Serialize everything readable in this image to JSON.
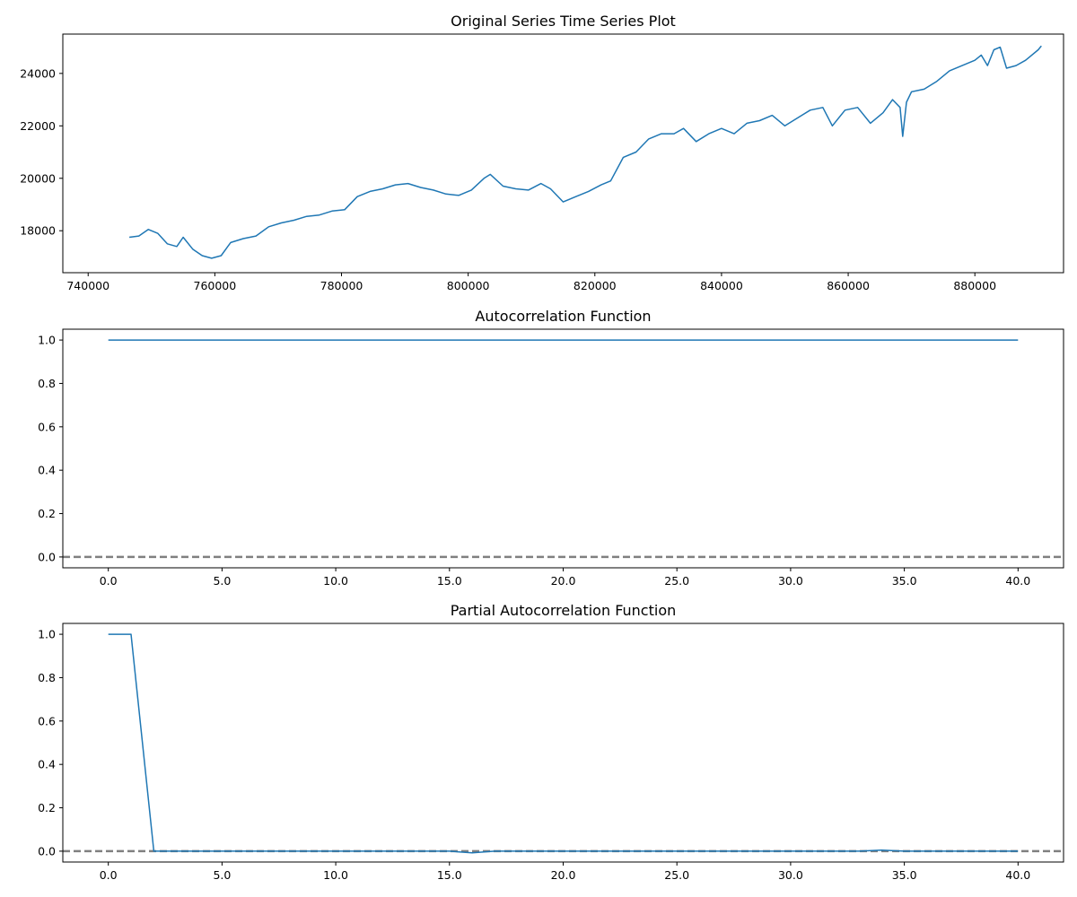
{
  "chart_data": [
    {
      "type": "line",
      "title": "Original Series Time Series Plot",
      "xlabel": "",
      "ylabel": "",
      "xlim": [
        736000,
        894000
      ],
      "ylim": [
        16400,
        25500
      ],
      "xticks": [
        740000,
        760000,
        780000,
        800000,
        820000,
        840000,
        860000,
        880000
      ],
      "yticks": [
        18000,
        20000,
        22000,
        24000
      ],
      "grid": false,
      "series": [
        {
          "color": "#1f77b4",
          "x": [
            746500,
            748000,
            749500,
            751000,
            752500,
            754000,
            755000,
            756500,
            758000,
            759500,
            761000,
            762500,
            764500,
            766500,
            768500,
            770500,
            772500,
            774500,
            776500,
            778500,
            780500,
            782500,
            784500,
            786500,
            788500,
            790500,
            792500,
            794500,
            796500,
            798500,
            800500,
            802500,
            803500,
            805500,
            807500,
            809500,
            811500,
            813000,
            815000,
            817000,
            819000,
            821000,
            822500,
            824500,
            826500,
            828500,
            830500,
            832500,
            834000,
            836000,
            838000,
            840000,
            842000,
            844000,
            846000,
            848000,
            850000,
            852000,
            854000,
            856000,
            857500,
            859500,
            861500,
            863500,
            865500,
            867000,
            868200,
            868600,
            869200,
            870000,
            872000,
            874000,
            876000,
            878000,
            880000,
            881000,
            882000,
            883000,
            884000,
            885000,
            886500,
            888000,
            890000,
            890500
          ],
          "y": [
            17750,
            17800,
            18050,
            17900,
            17500,
            17400,
            17750,
            17300,
            17050,
            16950,
            17050,
            17550,
            17700,
            17800,
            18150,
            18300,
            18400,
            18550,
            18600,
            18750,
            18800,
            19300,
            19500,
            19600,
            19750,
            19800,
            19650,
            19550,
            19400,
            19350,
            19550,
            20000,
            20150,
            19700,
            19600,
            19550,
            19800,
            19600,
            19100,
            19300,
            19500,
            19750,
            19900,
            20800,
            21000,
            21500,
            21700,
            21700,
            21900,
            21400,
            21700,
            21900,
            21700,
            22100,
            22200,
            22400,
            22000,
            22300,
            22600,
            22700,
            22000,
            22600,
            22700,
            22100,
            22500,
            23000,
            22700,
            21600,
            22900,
            23300,
            23400,
            23700,
            24100,
            24300,
            24500,
            24700,
            24300,
            24900,
            25000,
            24200,
            24300,
            24500,
            24900,
            25050
          ]
        }
      ]
    },
    {
      "type": "line",
      "title": "Autocorrelation Function",
      "xlabel": "",
      "ylabel": "",
      "xlim": [
        -2,
        42
      ],
      "ylim": [
        -0.05,
        1.05
      ],
      "xticks": [
        0,
        5,
        10,
        15,
        20,
        25,
        30,
        35,
        40
      ],
      "yticks": [
        0.0,
        0.2,
        0.4,
        0.6,
        0.8,
        1.0
      ],
      "hline": 0,
      "grid": false,
      "series": [
        {
          "color": "#1f77b4",
          "x": [
            0,
            1,
            2,
            3,
            4,
            5,
            6,
            7,
            8,
            9,
            10,
            11,
            12,
            13,
            14,
            15,
            16,
            17,
            18,
            19,
            20,
            21,
            22,
            23,
            24,
            25,
            26,
            27,
            28,
            29,
            30,
            31,
            32,
            33,
            34,
            35,
            36,
            37,
            38,
            39,
            40
          ],
          "y": [
            1,
            1,
            1,
            1,
            1,
            1,
            1,
            1,
            1,
            1,
            1,
            1,
            1,
            1,
            1,
            1,
            1,
            1,
            1,
            1,
            1,
            1,
            1,
            1,
            1,
            1,
            1,
            1,
            1,
            1,
            1,
            1,
            1,
            1,
            1,
            1,
            1,
            1,
            1,
            1,
            1
          ]
        }
      ]
    },
    {
      "type": "line",
      "title": "Partial Autocorrelation Function",
      "xlabel": "",
      "ylabel": "",
      "xlim": [
        -2,
        42
      ],
      "ylim": [
        -0.05,
        1.05
      ],
      "xticks": [
        0,
        5,
        10,
        15,
        20,
        25,
        30,
        35,
        40
      ],
      "yticks": [
        0.0,
        0.2,
        0.4,
        0.6,
        0.8,
        1.0
      ],
      "hline": 0,
      "grid": false,
      "series": [
        {
          "color": "#1f77b4",
          "x": [
            0,
            1,
            2,
            3,
            4,
            5,
            6,
            7,
            8,
            9,
            10,
            11,
            12,
            13,
            14,
            15,
            16,
            17,
            18,
            19,
            20,
            21,
            22,
            23,
            24,
            25,
            26,
            27,
            28,
            29,
            30,
            31,
            32,
            33,
            34,
            35,
            36,
            37,
            38,
            39,
            40
          ],
          "y": [
            1,
            1,
            0,
            0,
            0,
            0,
            0,
            0,
            0,
            0,
            0,
            0,
            0,
            0,
            0,
            0,
            -0.008,
            0,
            0,
            0,
            0,
            0,
            0,
            0,
            0,
            0,
            0,
            0,
            0,
            0,
            0,
            0,
            0,
            0,
            0.005,
            0,
            0,
            0,
            0,
            0,
            0
          ]
        }
      ]
    }
  ]
}
